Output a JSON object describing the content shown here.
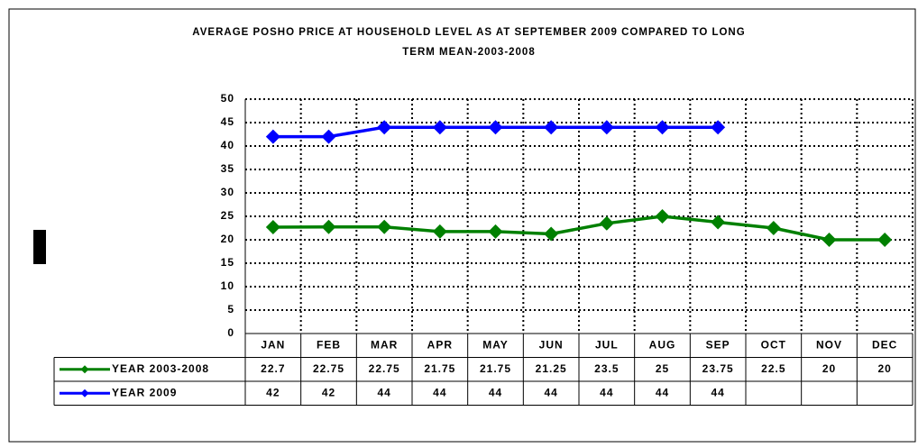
{
  "chart_data": {
    "type": "line",
    "title": [
      "AVERAGE POSHO PRICE AT HOUSEHOLD LEVEL AS AT SEPTEMBER 2009 COMPARED TO LONG",
      "TERM MEAN-2003-2008"
    ],
    "categories": [
      "JAN",
      "FEB",
      "MAR",
      "APR",
      "MAY",
      "JUN",
      "JUL",
      "AUG",
      "SEP",
      "OCT",
      "NOV",
      "DEC"
    ],
    "series": [
      {
        "name": "YEAR 2003-2008",
        "color": "#008000",
        "values": [
          22.7,
          22.75,
          22.75,
          21.75,
          21.75,
          21.25,
          23.5,
          25,
          23.75,
          22.5,
          20,
          20
        ]
      },
      {
        "name": "YEAR 2009",
        "color": "#0000ff",
        "values": [
          42,
          42,
          44,
          44,
          44,
          44,
          44,
          44,
          44,
          null,
          null,
          null
        ]
      }
    ],
    "ylim": [
      0,
      50
    ],
    "yticks": [
      0,
      5,
      10,
      15,
      20,
      25,
      30,
      35,
      40,
      45,
      50
    ],
    "grid": true,
    "data_table": true
  }
}
